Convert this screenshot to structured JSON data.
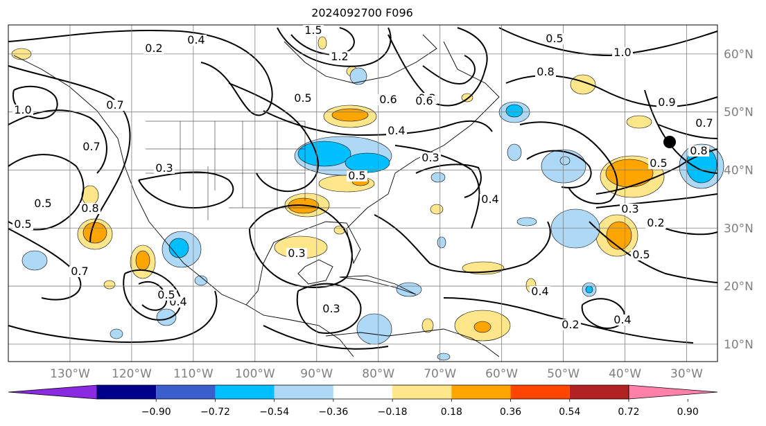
{
  "title": "2024092700 F096",
  "map": {
    "projection": "equirectangular",
    "lon_range": [
      -140,
      -25
    ],
    "lat_range": [
      7,
      65
    ],
    "grid": true,
    "lon_ticks": [
      "130°W",
      "120°W",
      "110°W",
      "100°W",
      "90°W",
      "80°W",
      "70°W",
      "60°W",
      "50°W",
      "40°W",
      "30°W"
    ],
    "lat_ticks": [
      "10°N",
      "20°N",
      "30°N",
      "40°N",
      "50°N",
      "60°N"
    ],
    "contour_labels": [
      "0.2",
      "0.4",
      "1.2",
      "1.5",
      "0.5",
      "1.0",
      "0.8",
      "0.6",
      "0.3",
      "0.7",
      "0.7",
      "0.8",
      "0.5",
      "0.4",
      "0.5",
      "0.3",
      "0.7",
      "0.5",
      "0.4",
      "0.3",
      "0.4",
      "0.2",
      "0.4",
      "0.3",
      "0.2",
      "0.3",
      "0.5",
      "0.7",
      "0.8",
      "0.5",
      "0.9",
      "0.4",
      "0.5",
      "0.6",
      "1.0",
      "0.5",
      "0.3"
    ],
    "marker_color": "#000000"
  },
  "colorbar": {
    "colors": [
      "#8a2be2",
      "#00008b",
      "#3a5fcd",
      "#00bfff",
      "#add8f6",
      "#ffffff",
      "#ffe68a",
      "#ffa500",
      "#ff4500",
      "#b22222",
      "#ff80a8"
    ],
    "tick_labels": [
      "−0.90",
      "−0.72",
      "−0.54",
      "−0.36",
      "−0.18",
      "0.18",
      "0.36",
      "0.54",
      "0.72",
      "0.90"
    ]
  }
}
